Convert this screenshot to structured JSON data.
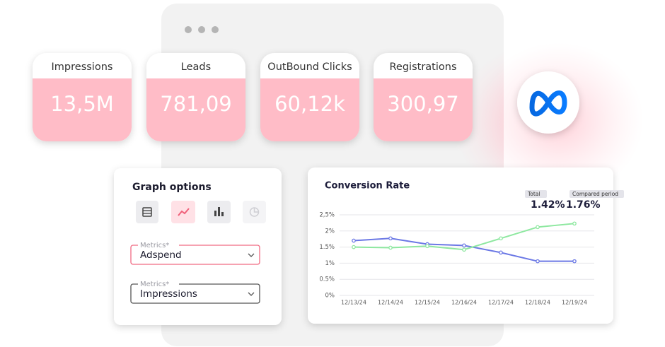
{
  "cards": [
    {
      "label": "Impressions",
      "value": "13,5M"
    },
    {
      "label": "Leads",
      "value": "781,09"
    },
    {
      "label": "OutBound Clicks",
      "value": "60,12k"
    },
    {
      "label": "Registrations",
      "value": "300,97"
    }
  ],
  "graph_options": {
    "title": "Graph options",
    "fields": [
      {
        "label": "Metrics*",
        "value": "Adspend"
      },
      {
        "label": "Metrics*",
        "value": "Impressions"
      }
    ]
  },
  "chart_data": {
    "type": "line",
    "title": "Conversion Rate",
    "annotations": [
      {
        "label": "Total",
        "text": "1.42%"
      },
      {
        "label": "Compared period",
        "text": "1.76%"
      }
    ],
    "categories": [
      "12/13/24",
      "12/14/24",
      "12/15/24",
      "12/16/24",
      "12/17/24",
      "12/18/24",
      "12/19/24"
    ],
    "series": [
      {
        "color": "#6b78e5",
        "values": [
          1.7,
          1.77,
          1.59,
          1.55,
          1.33,
          1.06,
          1.06
        ]
      },
      {
        "color": "#8ee8a0",
        "values": [
          1.5,
          1.48,
          1.53,
          1.42,
          1.77,
          2.12,
          2.23
        ]
      }
    ],
    "ylim": [
      0,
      2.5
    ],
    "yticks": [
      {
        "value": 0,
        "label": "0%"
      },
      {
        "value": 0.5,
        "label": "0.5%"
      },
      {
        "value": 1,
        "label": "1%"
      },
      {
        "value": 1.5,
        "label": "1.5%"
      },
      {
        "value": 2,
        "label": "2%"
      },
      {
        "value": 2.5,
        "label": "2,5%"
      }
    ],
    "grid": true
  }
}
